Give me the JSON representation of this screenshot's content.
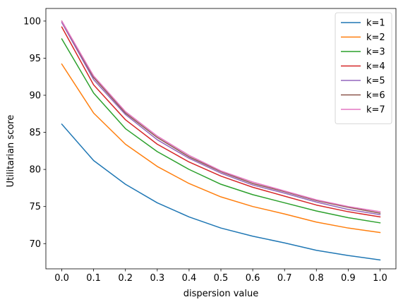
{
  "chart_data": {
    "type": "line",
    "title": "",
    "xlabel": "dispersion value",
    "ylabel": "Utilitarian score",
    "x": [
      0.0,
      0.1,
      0.2,
      0.3,
      0.4,
      0.5,
      0.6,
      0.7,
      0.8,
      0.9,
      1.0
    ],
    "xticks": [
      "0.0",
      "0.1",
      "0.2",
      "0.3",
      "0.4",
      "0.5",
      "0.6",
      "0.7",
      "0.8",
      "0.9",
      "1.0"
    ],
    "yticks": [
      "70",
      "75",
      "80",
      "85",
      "90",
      "95",
      "100"
    ],
    "xlim": [
      -0.05,
      1.05
    ],
    "ylim": [
      66.6,
      101.7
    ],
    "grid": false,
    "legend_position": "top-right",
    "series": [
      {
        "name": "k=1",
        "color": "#1f77b4",
        "values": [
          86.1,
          81.2,
          78.0,
          75.5,
          73.6,
          72.1,
          71.0,
          70.1,
          69.1,
          68.4,
          67.8
        ]
      },
      {
        "name": "k=2",
        "color": "#ff7f0e",
        "values": [
          94.2,
          87.6,
          83.4,
          80.4,
          78.1,
          76.3,
          75.0,
          74.0,
          72.9,
          72.1,
          71.5
        ]
      },
      {
        "name": "k=3",
        "color": "#2ca02c",
        "values": [
          97.6,
          90.3,
          85.5,
          82.4,
          80.0,
          78.0,
          76.6,
          75.5,
          74.4,
          73.5,
          72.8
        ]
      },
      {
        "name": "k=4",
        "color": "#d62728",
        "values": [
          99.2,
          91.4,
          86.7,
          83.4,
          81.0,
          79.1,
          77.6,
          76.4,
          75.2,
          74.3,
          73.6
        ]
      },
      {
        "name": "k=5",
        "color": "#9467bd",
        "values": [
          99.8,
          92.1,
          87.4,
          84.0,
          81.5,
          79.5,
          77.9,
          76.8,
          75.6,
          74.6,
          73.9
        ]
      },
      {
        "name": "k=6",
        "color": "#8c564b",
        "values": [
          100.0,
          92.4,
          87.6,
          84.3,
          81.7,
          79.7,
          78.1,
          77.0,
          75.8,
          74.9,
          74.1
        ]
      },
      {
        "name": "k=7",
        "color": "#e377c2",
        "values": [
          100.0,
          92.6,
          87.8,
          84.5,
          81.9,
          79.8,
          78.3,
          77.1,
          75.9,
          75.0,
          74.3
        ]
      }
    ]
  }
}
